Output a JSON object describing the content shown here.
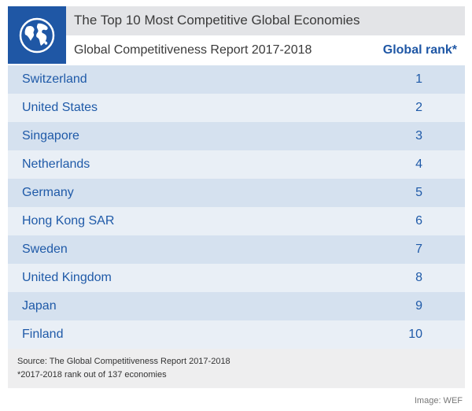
{
  "chart_data": {
    "type": "table",
    "title": "The Top 10 Most Competitive Global Economies",
    "subtitle": "Global Competitiveness Report 2017-2018",
    "columns": [
      "",
      "Global rank*"
    ],
    "rows": [
      {
        "country": "Switzerland",
        "rank": "1"
      },
      {
        "country": "United States",
        "rank": "2"
      },
      {
        "country": "Singapore",
        "rank": "3"
      },
      {
        "country": "Netherlands",
        "rank": "4"
      },
      {
        "country": "Germany",
        "rank": "5"
      },
      {
        "country": "Hong Kong SAR",
        "rank": "6"
      },
      {
        "country": "Sweden",
        "rank": "7"
      },
      {
        "country": "United Kingdom",
        "rank": "8"
      },
      {
        "country": "Japan",
        "rank": "9"
      },
      {
        "country": "Finland",
        "rank": "10"
      }
    ],
    "source": "Source: The Global Competitiveness Report 2017-2018",
    "note": "*2017-2018 rank out of 137 economies",
    "credit": "Image: WEF"
  },
  "colors": {
    "brand_blue": "#1f57a5",
    "row_dark": "#d5e1ef",
    "row_light": "#e9eff6",
    "title_bar": "#e3e4e7",
    "footer_bg": "#eeeeef"
  },
  "logo_icon": "globe-icon"
}
